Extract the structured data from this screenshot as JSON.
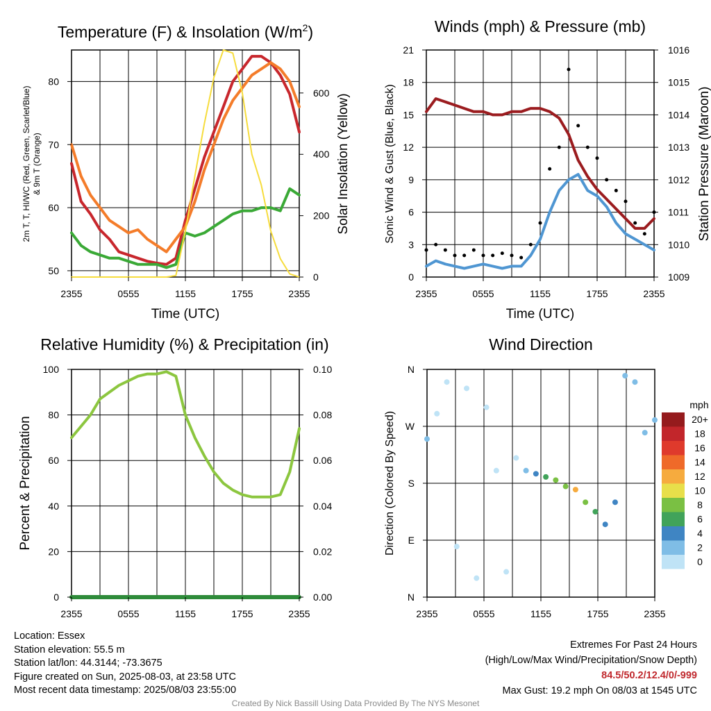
{
  "panels": {
    "temp": {
      "title_main": "Temperature (F) & Insolation (W/m",
      "title_sup": "2",
      "title_end": ")",
      "xlabel": "Time (UTC)",
      "ylabel_left": [
        "2m T, T, HI/WC (Red, Green, Scarlet/Blue)",
        "& 9m T (Orange)"
      ],
      "ylabel_right": "Solar Insolation (Yellow)"
    },
    "wind": {
      "title": "Winds (mph) & Pressure (mb)",
      "xlabel": "Time (UTC)",
      "ylabel_left": "Sonic Wind & Gust (Blue, Black)",
      "ylabel_right": "Station Pressure (Maroon)"
    },
    "rh": {
      "title": "Relative Humidity (%) & Precipitation (in)",
      "ylabel_left": "Percent & Precipitation"
    },
    "dir": {
      "title": "Wind Direction",
      "ylabel_left": "Direction (Colored By Speed)",
      "legend_title": "mph",
      "legend_labels": [
        "20+",
        "18",
        "16",
        "14",
        "12",
        "10",
        "8",
        "6",
        "4",
        "2",
        "0"
      ]
    }
  },
  "x_ticks": [
    "2355",
    "0555",
    "1155",
    "1755",
    "2355"
  ],
  "chart_data": [
    {
      "type": "line",
      "title": "Temperature (F) & Insolation (W/m2)",
      "xlabel": "Time (UTC)",
      "x": [
        "2355",
        "0055",
        "0155",
        "0255",
        "0355",
        "0455",
        "0555",
        "0655",
        "0755",
        "0855",
        "0955",
        "1055",
        "1155",
        "1255",
        "1355",
        "1455",
        "1555",
        "1655",
        "1755",
        "1855",
        "1955",
        "2055",
        "2155",
        "2255",
        "2355"
      ],
      "ylim": [
        49,
        85
      ],
      "y2lim": [
        0,
        740
      ],
      "yticks": [
        50,
        60,
        70,
        80
      ],
      "y2ticks": [
        0,
        200,
        400,
        600
      ],
      "series": [
        {
          "name": "2m T (Red)",
          "color": "#c8272d",
          "axis": "left",
          "values": [
            67.0,
            61.0,
            59.0,
            56.5,
            55.0,
            53.0,
            52.5,
            52.0,
            51.5,
            51.2,
            51.0,
            52.0,
            58.0,
            63.0,
            68.0,
            72.0,
            76.0,
            80.0,
            82.0,
            84.0,
            84.0,
            83.0,
            81.0,
            78.0,
            72.0
          ]
        },
        {
          "name": "9m T (Orange)",
          "color": "#f47c2a",
          "axis": "left",
          "values": [
            70.0,
            65.0,
            62.0,
            60.0,
            58.0,
            57.0,
            56.0,
            56.5,
            55.0,
            54.0,
            53.0,
            55.0,
            57.0,
            61.0,
            66.0,
            70.0,
            74.0,
            77.0,
            79.0,
            81.0,
            82.0,
            83.0,
            82.0,
            80.0,
            76.0
          ]
        },
        {
          "name": "Td (Green)",
          "color": "#3aa936",
          "axis": "left",
          "values": [
            56.0,
            54.0,
            53.0,
            52.5,
            52.0,
            52.0,
            51.5,
            51.0,
            51.0,
            51.0,
            50.5,
            51.0,
            56.0,
            55.5,
            56.0,
            57.0,
            58.0,
            59.0,
            59.5,
            59.5,
            60.0,
            60.0,
            59.5,
            63.0,
            62.0
          ]
        },
        {
          "name": "Solar Insolation (Yellow)",
          "color": "#f6dc3c",
          "axis": "right",
          "values": [
            0,
            0,
            0,
            0,
            0,
            0,
            0,
            0,
            0,
            0,
            0,
            5,
            150,
            330,
            500,
            650,
            740,
            730,
            600,
            400,
            300,
            150,
            60,
            10,
            0
          ]
        }
      ]
    },
    {
      "type": "line",
      "title": "Winds (mph) & Pressure (mb)",
      "xlabel": "Time (UTC)",
      "x": [
        "2355",
        "0055",
        "0155",
        "0255",
        "0355",
        "0455",
        "0555",
        "0655",
        "0755",
        "0855",
        "0955",
        "1055",
        "1155",
        "1255",
        "1355",
        "1455",
        "1555",
        "1655",
        "1755",
        "1855",
        "1955",
        "2055",
        "2155",
        "2255",
        "2355"
      ],
      "ylim": [
        0,
        21
      ],
      "y2lim": [
        1009,
        1016
      ],
      "yticks": [
        0,
        3,
        6,
        9,
        12,
        15,
        18,
        21
      ],
      "y2ticks": [
        1009,
        1010,
        1011,
        1012,
        1013,
        1014,
        1015,
        1016
      ],
      "series": [
        {
          "name": "Sonic Wind (Blue)",
          "color": "#4f96d2",
          "axis": "left",
          "values": [
            1.0,
            1.5,
            1.2,
            1.0,
            0.8,
            1.0,
            1.2,
            1.0,
            0.8,
            1.0,
            1.0,
            2.0,
            3.5,
            6.0,
            8.0,
            9.0,
            9.5,
            8.0,
            7.5,
            6.5,
            5.0,
            4.0,
            3.5,
            3.0,
            2.5
          ]
        },
        {
          "name": "Gust (Black)",
          "color": "#000000",
          "axis": "left",
          "values": [
            2.5,
            3.0,
            2.5,
            2.0,
            2.0,
            2.5,
            2.0,
            2.0,
            2.2,
            2.0,
            1.8,
            3.0,
            5.0,
            10.0,
            12.0,
            19.2,
            14.0,
            12.0,
            11.0,
            9.0,
            8.0,
            7.0,
            5.0,
            4.0,
            6.0
          ]
        },
        {
          "name": "Station Pressure (Maroon)",
          "color": "#9b1c1f",
          "axis": "right",
          "values": [
            1014.1,
            1014.5,
            1014.4,
            1014.3,
            1014.2,
            1014.1,
            1014.1,
            1014.0,
            1014.0,
            1014.1,
            1014.1,
            1014.2,
            1014.2,
            1014.1,
            1013.9,
            1013.4,
            1012.6,
            1012.1,
            1011.7,
            1011.4,
            1011.1,
            1010.8,
            1010.5,
            1010.5,
            1010.8
          ]
        }
      ]
    },
    {
      "type": "line",
      "title": "Relative Humidity (%) & Precipitation (in)",
      "x": [
        "2355",
        "0055",
        "0155",
        "0255",
        "0355",
        "0455",
        "0555",
        "0655",
        "0755",
        "0855",
        "0955",
        "1055",
        "1155",
        "1255",
        "1355",
        "1455",
        "1555",
        "1655",
        "1755",
        "1855",
        "1955",
        "2055",
        "2155",
        "2255",
        "2355"
      ],
      "ylim": [
        0,
        100
      ],
      "y2lim": [
        0,
        0.1
      ],
      "yticks": [
        0,
        20,
        40,
        60,
        80,
        100
      ],
      "y2ticks": [
        0.0,
        0.02,
        0.04,
        0.06,
        0.08,
        0.1
      ],
      "series": [
        {
          "name": "Relative Humidity",
          "color": "#8cc63f",
          "axis": "left",
          "values": [
            70,
            75,
            80,
            87,
            90,
            93,
            95,
            97,
            98,
            98,
            99,
            97,
            80,
            70,
            62,
            55,
            50,
            47,
            45,
            44,
            44,
            44,
            45,
            55,
            74
          ]
        },
        {
          "name": "Precipitation",
          "color": "#2e8b3a",
          "axis": "right",
          "values": [
            0,
            0,
            0,
            0,
            0,
            0,
            0,
            0,
            0,
            0,
            0,
            0,
            0,
            0,
            0,
            0,
            0,
            0,
            0,
            0,
            0,
            0,
            0,
            0,
            0
          ]
        }
      ]
    },
    {
      "type": "scatter",
      "title": "Wind Direction",
      "ylabel": "Direction (Colored By Speed)",
      "y_categories": [
        "N",
        "E",
        "S",
        "W",
        "N"
      ],
      "ylim": [
        0,
        360
      ],
      "colorbar": {
        "label": "mph",
        "levels": [
          0,
          2,
          4,
          6,
          8,
          10,
          12,
          14,
          16,
          18,
          20
        ],
        "colors": [
          "#bfe3f6",
          "#7fbde6",
          "#3f85c3",
          "#41a35a",
          "#7ac043",
          "#e8df4a",
          "#f6ab3e",
          "#ef6a29",
          "#df3a2c",
          "#c2262b",
          "#951b1d"
        ]
      },
      "series": [
        {
          "name": "direction",
          "points": [
            {
              "x": "0055",
              "y": 250,
              "v": 2
            },
            {
              "x": "0155",
              "y": 290,
              "v": 1
            },
            {
              "x": "0255",
              "y": 340,
              "v": 1
            },
            {
              "x": "0355",
              "y": 80,
              "v": 1
            },
            {
              "x": "0455",
              "y": 330,
              "v": 1
            },
            {
              "x": "0555",
              "y": 30,
              "v": 1
            },
            {
              "x": "0655",
              "y": 300,
              "v": 1
            },
            {
              "x": "0755",
              "y": 200,
              "v": 1
            },
            {
              "x": "0855",
              "y": 40,
              "v": 1
            },
            {
              "x": "0955",
              "y": 220,
              "v": 1
            },
            {
              "x": "1055",
              "y": 200,
              "v": 2
            },
            {
              "x": "1155",
              "y": 195,
              "v": 4
            },
            {
              "x": "1255",
              "y": 190,
              "v": 7
            },
            {
              "x": "1355",
              "y": 185,
              "v": 8
            },
            {
              "x": "1455",
              "y": 175,
              "v": 9
            },
            {
              "x": "1555",
              "y": 170,
              "v": 12
            },
            {
              "x": "1655",
              "y": 150,
              "v": 8
            },
            {
              "x": "1755",
              "y": 135,
              "v": 7
            },
            {
              "x": "1855",
              "y": 115,
              "v": 5
            },
            {
              "x": "1955",
              "y": 150,
              "v": 4
            },
            {
              "x": "2055",
              "y": 350,
              "v": 2
            },
            {
              "x": "2155",
              "y": 340,
              "v": 2
            },
            {
              "x": "2255",
              "y": 260,
              "v": 3
            },
            {
              "x": "2355",
              "y": 280,
              "v": 3
            }
          ]
        }
      ]
    }
  ],
  "meta": {
    "location": "Location: Essex",
    "elevation": "Station elevation: 55.5 m",
    "latlon": "Station lat/lon: 44.3144; -73.3675",
    "created": "Figure created on Sun, 2025-08-03, at 23:58 UTC",
    "recent": "Most recent data timestamp: 2025/08/03 23:55:00"
  },
  "extremes": {
    "heading": "Extremes For Past 24 Hours",
    "fields": "(High/Low/Max Wind/Precipitation/Snow Depth)",
    "values": "84.5/50.2/12.4/0/-999",
    "max_gust": "Max Gust: 19.2 mph On 08/03 at 1545 UTC"
  },
  "credit": "Created By Nick Bassill Using Data Provided By The NYS Mesonet"
}
